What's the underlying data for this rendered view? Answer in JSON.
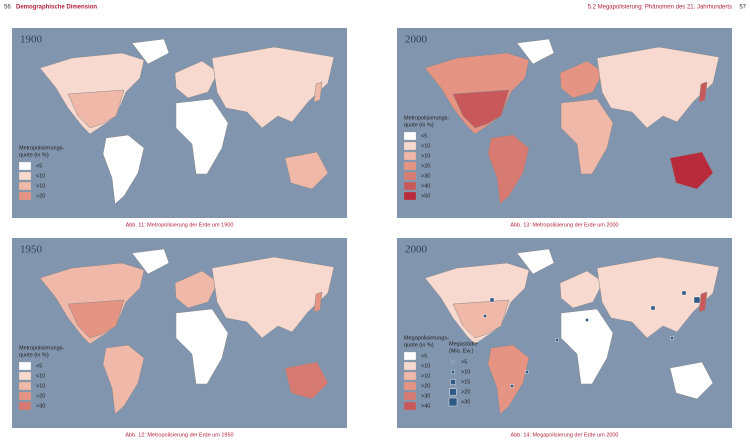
{
  "header": {
    "left_page": "56",
    "left_title": "Demographische Dimension",
    "right_title": "5.2 Megapolisierung: Phänomen des 21. Jahrhunderts",
    "right_page": "57"
  },
  "maps": [
    {
      "year": "1900",
      "legend_title": [
        "Metropolisierungs-",
        "quote (in %)"
      ],
      "legend": [
        {
          "label": "<5",
          "color": "#ffffff"
        },
        {
          "label": "<10",
          "color": "#f8d9cf"
        },
        {
          "label": ">10",
          "color": "#f0b8a8"
        },
        {
          "label": ">20",
          "color": "#e59484"
        }
      ],
      "caption": "Abb. 11: Metropolisierung der Erde um 1900"
    },
    {
      "year": "2000",
      "legend_title": [
        "Metropolisierungs-",
        "quote (in %)"
      ],
      "legend": [
        {
          "label": "<5",
          "color": "#ffffff"
        },
        {
          "label": "<10",
          "color": "#f8d9cf"
        },
        {
          "label": ">10",
          "color": "#f0b8a8"
        },
        {
          "label": ">20",
          "color": "#e59484"
        },
        {
          "label": ">30",
          "color": "#d77a72"
        },
        {
          "label": ">40",
          "color": "#c9585a"
        },
        {
          "label": ">50",
          "color": "#b82a3c"
        }
      ],
      "caption": "Abb. 13: Metropolisierung der Erde um 2000"
    },
    {
      "year": "1950",
      "legend_title": [
        "Metropolisierungs-",
        "quote (in %)"
      ],
      "legend": [
        {
          "label": "<5",
          "color": "#ffffff"
        },
        {
          "label": "<10",
          "color": "#f8d9cf"
        },
        {
          "label": ">10",
          "color": "#f0b8a8"
        },
        {
          "label": ">20",
          "color": "#e59484"
        },
        {
          "label": ">30",
          "color": "#d77a72"
        }
      ],
      "caption": "Abb. 12: Metropolisierung der Erde um 1950"
    },
    {
      "year": "2000",
      "legend_title": [
        "Megapolisierungs-",
        "quote (in %)"
      ],
      "legend": [
        {
          "label": "<5",
          "color": "#ffffff"
        },
        {
          "label": "<10",
          "color": "#f8d9cf"
        },
        {
          "label": ">10",
          "color": "#f0b8a8"
        },
        {
          "label": ">20",
          "color": "#e59484"
        },
        {
          "label": ">30",
          "color": "#d77a72"
        },
        {
          "label": ">40",
          "color": "#c9585a"
        }
      ],
      "legend2_title": [
        "Megastädte",
        "(Mio. Ew.)"
      ],
      "legend2": [
        {
          "label": ">5"
        },
        {
          "label": ">10"
        },
        {
          "label": ">15"
        },
        {
          "label": ">20"
        },
        {
          "label": ">30"
        }
      ],
      "caption": "Abb. 14: Megapolisierung der Erde um 2000"
    }
  ]
}
